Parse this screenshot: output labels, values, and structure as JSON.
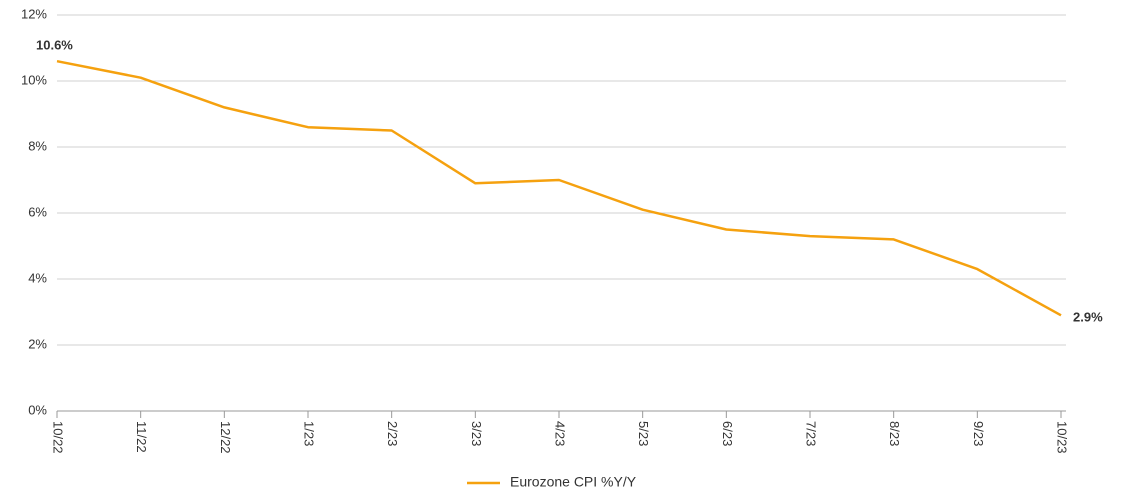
{
  "chart_data": {
    "type": "line",
    "categories": [
      "10/22",
      "11/22",
      "12/22",
      "1/23",
      "2/23",
      "3/23",
      "4/23",
      "5/23",
      "6/23",
      "7/23",
      "8/23",
      "9/23",
      "10/23"
    ],
    "series": [
      {
        "name": "Eurozone CPI %Y/Y",
        "color": "#f5a10f",
        "values": [
          10.6,
          10.1,
          9.2,
          8.6,
          8.5,
          6.9,
          7.0,
          6.1,
          5.5,
          5.3,
          5.2,
          4.3,
          2.9
        ],
        "value_labels": [
          "10.6%",
          null,
          null,
          null,
          null,
          null,
          null,
          null,
          null,
          null,
          null,
          null,
          "2.9%"
        ]
      }
    ],
    "ylim": [
      0,
      12
    ],
    "yticks": [
      {
        "value": 0,
        "label": "0%"
      },
      {
        "value": 2,
        "label": "2%"
      },
      {
        "value": 4,
        "label": "4%"
      },
      {
        "value": 6,
        "label": "6%"
      },
      {
        "value": 8,
        "label": "8%"
      },
      {
        "value": 10,
        "label": "10%"
      },
      {
        "value": 12,
        "label": "12%"
      }
    ],
    "grid": true,
    "legend": "bottom"
  }
}
